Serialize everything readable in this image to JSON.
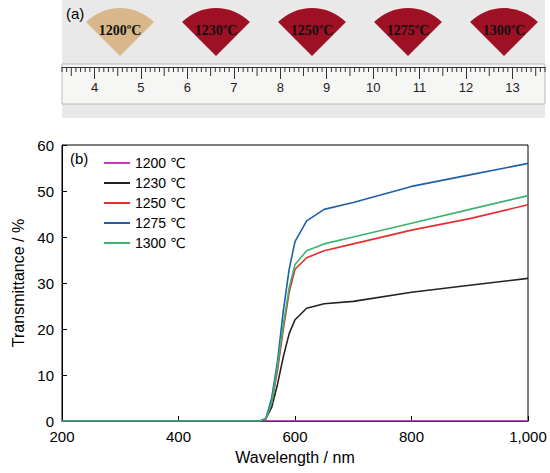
{
  "chart_data": {
    "type": "line",
    "label": "(b)",
    "xlabel": "Wavelength / nm",
    "ylabel": "Transmittance / %",
    "x": [
      200,
      500,
      540,
      550,
      560,
      570,
      580,
      590,
      600,
      620,
      650,
      700,
      800,
      900,
      1000
    ],
    "series": [
      {
        "name": "1200 ℃",
        "color": "#c23cc2",
        "values": [
          0,
          0,
          0,
          0,
          0,
          0,
          0,
          0,
          0,
          0,
          0,
          0,
          0,
          0,
          0
        ]
      },
      {
        "name": "1230 ℃",
        "color": "#222222",
        "values": [
          0,
          0,
          0,
          0.5,
          3,
          8,
          14,
          19,
          22,
          24.5,
          25.5,
          26,
          28,
          29.5,
          31
        ]
      },
      {
        "name": "1250 ℃",
        "color": "#e03030",
        "values": [
          0,
          0,
          0,
          0.5,
          4,
          11,
          20,
          28,
          33,
          35.5,
          37,
          38.5,
          41.5,
          44,
          47
        ]
      },
      {
        "name": "1275 ℃",
        "color": "#1f5fa8",
        "values": [
          0,
          0,
          0,
          0.5,
          5,
          13,
          24,
          33,
          39,
          43.5,
          46,
          47.5,
          51,
          53.5,
          56
        ]
      },
      {
        "name": "1300 ℃",
        "color": "#3cb371",
        "values": [
          0,
          0,
          0,
          0.5,
          4,
          12,
          21,
          29,
          34,
          37,
          38.5,
          40,
          43,
          46,
          49
        ]
      }
    ],
    "xlim": [
      200,
      1000
    ],
    "xticks": [
      200,
      400,
      600,
      800,
      1000
    ],
    "ylim": [
      0,
      60
    ],
    "yticks": [
      0,
      10,
      20,
      30,
      40,
      50,
      60
    ],
    "legend": "upper left",
    "grid": false
  },
  "photo": {
    "label": "(a)",
    "samples": [
      "1200ºC",
      "1230ºC",
      "1250ºC",
      "1275ºC",
      "1300ºC"
    ],
    "colors": [
      "#d8b88a",
      "#9e1024",
      "#9e1024",
      "#9e1024",
      "#9e1024"
    ],
    "ruler": {
      "xlim": [
        3.3,
        13.7
      ],
      "xticks": [
        4,
        5,
        6,
        7,
        8,
        9,
        10,
        11,
        12,
        13
      ]
    }
  }
}
